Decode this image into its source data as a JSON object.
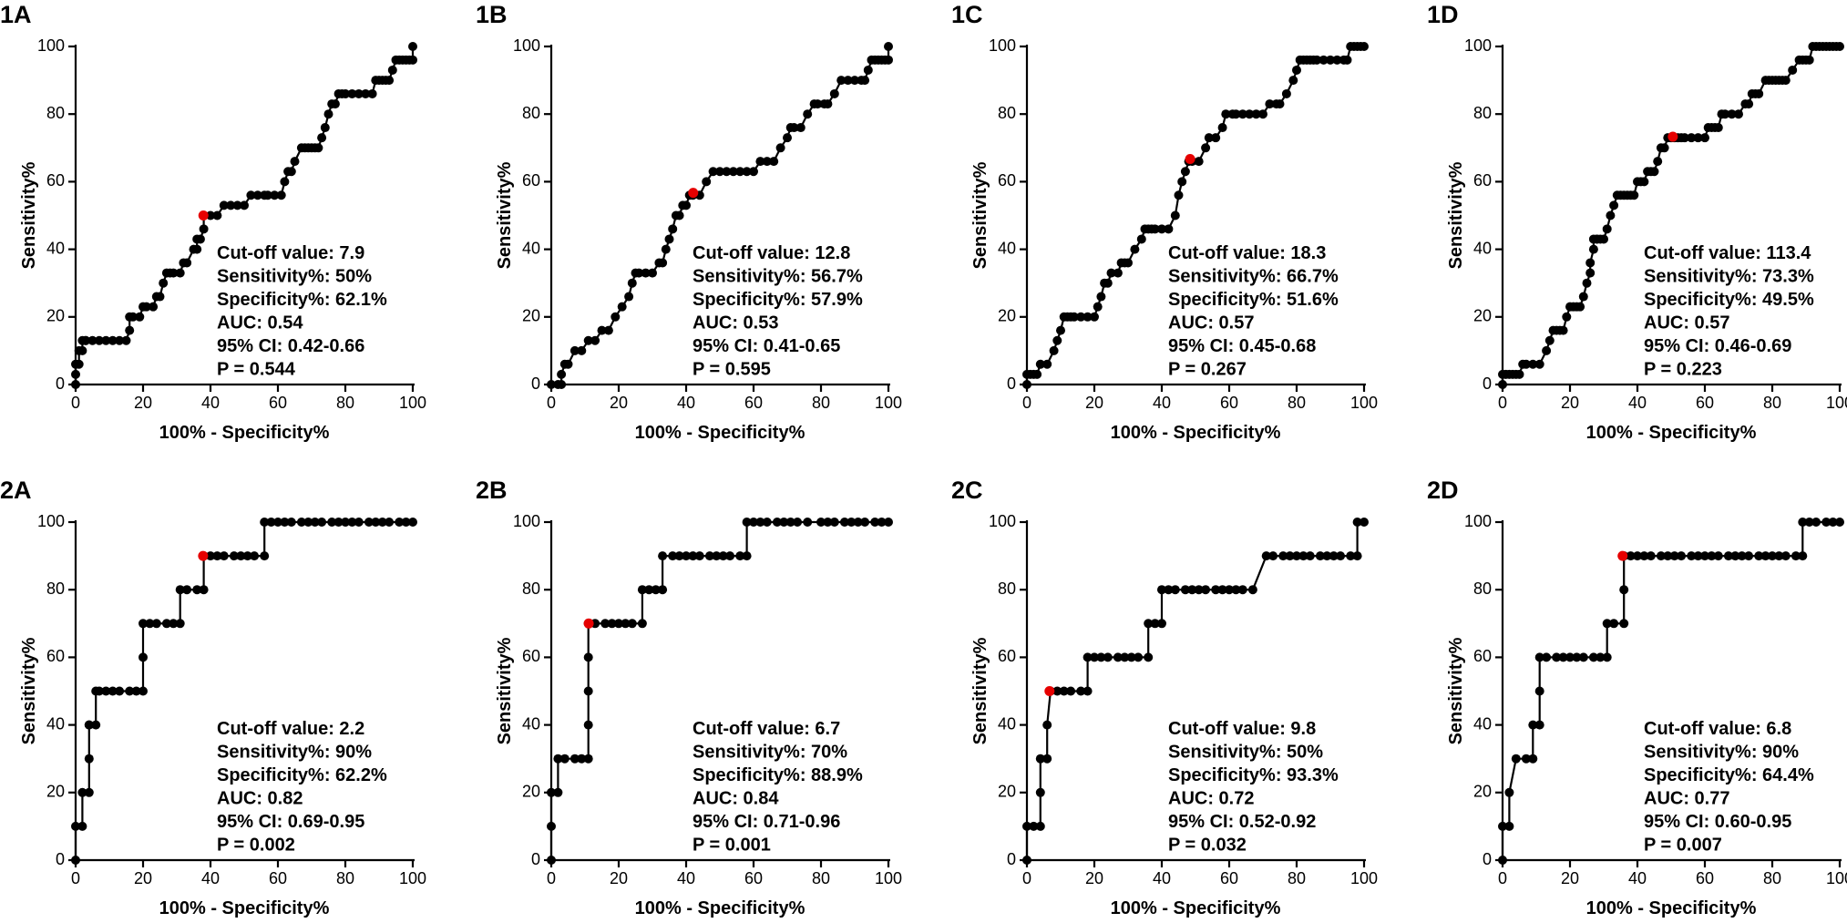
{
  "chart_data": [
    {
      "panel": "1A",
      "type": "line",
      "xlabel": "100% - Specificity%",
      "ylabel": "Sensitivity%",
      "xlim": [
        0,
        100
      ],
      "ylim": [
        0,
        100
      ],
      "xticks": [
        "0",
        "20",
        "40",
        "60",
        "80",
        "100"
      ],
      "yticks": [
        "0",
        "20",
        "40",
        "60",
        "80",
        "100"
      ],
      "cutoff_point": [
        37.9,
        50
      ],
      "stats": [
        "Cut-off value: 7.9",
        "Sensitivity%: 50%",
        "Specificity%: 62.1%",
        "AUC: 0.54",
        "95% CI: 0.42-0.66",
        "P = 0.544"
      ],
      "x": [
        0,
        0,
        0,
        1,
        1,
        2,
        2,
        3,
        3,
        5,
        7,
        9,
        11,
        13,
        15,
        16,
        16,
        17,
        19,
        20,
        21,
        23,
        24,
        25,
        26,
        27,
        28,
        29,
        31,
        32,
        33,
        35,
        36,
        36,
        37,
        38,
        38,
        40,
        42,
        44,
        46,
        48,
        50,
        52,
        54,
        56,
        57,
        59,
        61,
        62,
        63,
        64,
        65,
        67,
        68,
        69,
        70,
        71,
        72,
        73,
        74,
        75,
        76,
        77,
        78,
        79,
        80,
        82,
        84,
        86,
        88,
        89,
        90,
        91,
        92,
        93,
        94,
        95,
        96,
        97,
        98,
        99,
        100,
        100
      ],
      "y": [
        0,
        3,
        6,
        6,
        10,
        10,
        13,
        13,
        13,
        13,
        13,
        13,
        13,
        13,
        13,
        16,
        20,
        20,
        20,
        23,
        23,
        23,
        26,
        26,
        30,
        33,
        33,
        33,
        33,
        36,
        36,
        40,
        40,
        43,
        43,
        46,
        50,
        50,
        50,
        53,
        53,
        53,
        53,
        56,
        56,
        56,
        56,
        56,
        56,
        60,
        63,
        63,
        66,
        70,
        70,
        70,
        70,
        70,
        70,
        73,
        76,
        80,
        83,
        83,
        86,
        86,
        86,
        86,
        86,
        86,
        86,
        90,
        90,
        90,
        90,
        90,
        93,
        96,
        96,
        96,
        96,
        96,
        96,
        100
      ]
    },
    {
      "panel": "1B",
      "type": "line",
      "xlabel": "100% - Specificity%",
      "ylabel": "Sensitivity%",
      "xlim": [
        0,
        100
      ],
      "ylim": [
        0,
        100
      ],
      "xticks": [
        "0",
        "20",
        "40",
        "60",
        "80",
        "100"
      ],
      "yticks": [
        "0",
        "20",
        "40",
        "60",
        "80",
        "100"
      ],
      "cutoff_point": [
        42.1,
        56.7
      ],
      "stats": [
        "Cut-off value: 12.8",
        "Sensitivity%: 56.7%",
        "Specificity%: 57.9%",
        "AUC: 0.53",
        "95% CI: 0.41-0.65",
        "P = 0.595"
      ],
      "x": [
        0,
        2,
        3,
        3,
        4,
        5,
        7,
        9,
        11,
        13,
        15,
        17,
        19,
        21,
        23,
        24,
        25,
        26,
        28,
        30,
        32,
        33,
        34,
        35,
        36,
        37,
        38,
        39,
        40,
        41,
        42,
        44,
        46,
        48,
        50,
        52,
        54,
        56,
        58,
        60,
        62,
        64,
        66,
        68,
        70,
        71,
        72,
        74,
        76,
        78,
        79,
        81,
        82,
        84,
        86,
        88,
        90,
        92,
        93,
        94,
        95,
        96,
        97,
        98,
        99,
        100,
        100
      ],
      "y": [
        0,
        0,
        0,
        3,
        6,
        6,
        10,
        10,
        13,
        13,
        16,
        16,
        20,
        23,
        26,
        30,
        33,
        33,
        33,
        33,
        36,
        36,
        40,
        43,
        46,
        50,
        50,
        53,
        53,
        56,
        56,
        56,
        60,
        63,
        63,
        63,
        63,
        63,
        63,
        63,
        66,
        66,
        66,
        70,
        73,
        76,
        76,
        76,
        80,
        83,
        83,
        83,
        83,
        86,
        90,
        90,
        90,
        90,
        90,
        93,
        96,
        96,
        96,
        96,
        96,
        96,
        100
      ]
    },
    {
      "panel": "1C",
      "type": "line",
      "xlabel": "100% - Specificity%",
      "ylabel": "Sensitivity%",
      "xlim": [
        0,
        100
      ],
      "ylim": [
        0,
        100
      ],
      "xticks": [
        "0",
        "20",
        "40",
        "60",
        "80",
        "100"
      ],
      "yticks": [
        "0",
        "20",
        "40",
        "60",
        "80",
        "100"
      ],
      "cutoff_point": [
        48.4,
        66.7
      ],
      "stats": [
        "Cut-off value: 18.3",
        "Sensitivity%: 66.7%",
        "Specificity%: 51.6%",
        "AUC: 0.57",
        "95% CI: 0.45-0.68",
        "P = 0.267"
      ],
      "x": [
        0,
        0,
        1,
        2,
        3,
        4,
        6,
        8,
        9,
        10,
        11,
        12,
        13,
        14,
        16,
        18,
        20,
        21,
        22,
        23,
        24,
        25,
        27,
        28,
        29,
        30,
        32,
        34,
        35,
        36,
        37,
        38,
        40,
        42,
        44,
        45,
        46,
        47,
        48,
        49,
        51,
        53,
        54,
        56,
        58,
        59,
        61,
        62,
        64,
        66,
        68,
        70,
        72,
        74,
        75,
        77,
        79,
        80,
        81,
        82,
        83,
        84,
        85,
        86,
        88,
        90,
        92,
        94,
        95,
        96,
        97,
        98,
        99,
        100
      ],
      "y": [
        0,
        3,
        3,
        3,
        3,
        6,
        6,
        10,
        13,
        16,
        20,
        20,
        20,
        20,
        20,
        20,
        20,
        23,
        26,
        30,
        30,
        33,
        33,
        36,
        36,
        36,
        40,
        43,
        46,
        46,
        46,
        46,
        46,
        46,
        50,
        56,
        60,
        63,
        66,
        66,
        66,
        70,
        73,
        73,
        76,
        80,
        80,
        80,
        80,
        80,
        80,
        80,
        83,
        83,
        83,
        86,
        90,
        93,
        96,
        96,
        96,
        96,
        96,
        96,
        96,
        96,
        96,
        96,
        96,
        100,
        100,
        100,
        100,
        100
      ]
    },
    {
      "panel": "1D",
      "type": "line",
      "xlabel": "100% - Specificity%",
      "ylabel": "Sensitivity%",
      "xlim": [
        0,
        100
      ],
      "ylim": [
        0,
        100
      ],
      "xticks": [
        "0",
        "20",
        "40",
        "60",
        "80",
        "100"
      ],
      "yticks": [
        "0",
        "20",
        "40",
        "60",
        "80",
        "100"
      ],
      "cutoff_point": [
        50.5,
        73.3
      ],
      "stats": [
        "Cut-off value: 113.4",
        "Sensitivity%: 73.3%",
        "Specificity%: 49.5%",
        "AUC: 0.57",
        "95% CI: 0.46-0.69",
        "P = 0.223"
      ],
      "x": [
        0,
        0,
        1,
        2,
        3,
        4,
        5,
        6,
        7,
        9,
        11,
        13,
        14,
        15,
        16,
        17,
        18,
        19,
        20,
        21,
        22,
        23,
        24,
        25,
        26,
        26,
        27,
        27,
        28,
        28,
        29,
        30,
        31,
        32,
        33,
        34,
        35,
        36,
        37,
        38,
        39,
        40,
        41,
        42,
        43,
        44,
        45,
        46,
        47,
        48,
        49,
        50,
        51,
        52,
        53,
        54,
        56,
        58,
        60,
        61,
        62,
        63,
        64,
        65,
        66,
        68,
        70,
        72,
        73,
        74,
        75,
        76,
        78,
        79,
        80,
        81,
        82,
        83,
        84,
        86,
        88,
        89,
        90,
        91,
        92,
        93,
        94,
        95,
        96,
        97,
        98,
        99,
        100
      ],
      "y": [
        0,
        3,
        3,
        3,
        3,
        3,
        3,
        6,
        6,
        6,
        6,
        10,
        13,
        16,
        16,
        16,
        16,
        20,
        23,
        23,
        23,
        23,
        26,
        30,
        33,
        36,
        40,
        43,
        43,
        43,
        43,
        43,
        46,
        50,
        53,
        56,
        56,
        56,
        56,
        56,
        56,
        60,
        60,
        60,
        63,
        63,
        63,
        66,
        70,
        70,
        73,
        73,
        73,
        73,
        73,
        73,
        73,
        73,
        73,
        76,
        76,
        76,
        76,
        80,
        80,
        80,
        80,
        83,
        83,
        86,
        86,
        86,
        90,
        90,
        90,
        90,
        90,
        90,
        90,
        93,
        96,
        96,
        96,
        96,
        100,
        100,
        100,
        100,
        100,
        100,
        100,
        100,
        100
      ]
    },
    {
      "panel": "2A",
      "type": "line",
      "xlabel": "100% - Specificity%",
      "ylabel": "Sensitivity%",
      "xlim": [
        0,
        100
      ],
      "ylim": [
        0,
        100
      ],
      "xticks": [
        "0",
        "20",
        "40",
        "60",
        "80",
        "100"
      ],
      "yticks": [
        "0",
        "20",
        "40",
        "60",
        "80",
        "100"
      ],
      "cutoff_point": [
        37.8,
        90
      ],
      "stats": [
        "Cut-off value: 2.2",
        "Sensitivity%: 90%",
        "Specificity%: 62.2%",
        "AUC: 0.82",
        "95% CI: 0.69-0.95",
        "P = 0.002"
      ],
      "x": [
        0,
        0,
        2,
        2,
        4,
        4,
        4,
        4,
        6,
        6,
        7,
        9,
        11,
        13,
        16,
        18,
        20,
        20,
        20,
        22,
        24,
        27,
        29,
        31,
        31,
        33,
        36,
        38,
        38,
        40,
        42,
        44,
        47,
        49,
        51,
        53,
        56,
        56,
        58,
        60,
        62,
        64,
        67,
        69,
        71,
        73,
        76,
        78,
        80,
        82,
        84,
        87,
        89,
        91,
        93,
        96,
        98,
        100
      ],
      "y": [
        0,
        10,
        10,
        20,
        20,
        30,
        40,
        40,
        40,
        50,
        50,
        50,
        50,
        50,
        50,
        50,
        50,
        60,
        70,
        70,
        70,
        70,
        70,
        70,
        80,
        80,
        80,
        80,
        90,
        90,
        90,
        90,
        90,
        90,
        90,
        90,
        90,
        100,
        100,
        100,
        100,
        100,
        100,
        100,
        100,
        100,
        100,
        100,
        100,
        100,
        100,
        100,
        100,
        100,
        100,
        100,
        100,
        100
      ]
    },
    {
      "panel": "2B",
      "type": "line",
      "xlabel": "100% - Specificity%",
      "ylabel": "Sensitivity%",
      "xlim": [
        0,
        100
      ],
      "ylim": [
        0,
        100
      ],
      "xticks": [
        "0",
        "20",
        "40",
        "60",
        "80",
        "100"
      ],
      "yticks": [
        "0",
        "20",
        "40",
        "60",
        "80",
        "100"
      ],
      "cutoff_point": [
        11.1,
        70
      ],
      "stats": [
        "Cut-off value: 6.7",
        "Sensitivity%: 70%",
        "Specificity%: 88.9%",
        "AUC: 0.84",
        "95% CI: 0.71-0.96",
        "P = 0.001"
      ],
      "x": [
        0,
        0,
        0,
        2,
        2,
        4,
        7,
        9,
        11,
        11,
        11,
        11,
        11,
        11,
        13,
        16,
        18,
        20,
        22,
        24,
        27,
        27,
        29,
        31,
        33,
        33,
        36,
        38,
        40,
        42,
        44,
        47,
        49,
        51,
        53,
        56,
        58,
        58,
        60,
        62,
        64,
        67,
        69,
        71,
        73,
        76,
        80,
        82,
        84,
        87,
        89,
        91,
        93,
        96,
        98,
        100
      ],
      "y": [
        0,
        10,
        20,
        20,
        30,
        30,
        30,
        30,
        30,
        40,
        50,
        60,
        70,
        70,
        70,
        70,
        70,
        70,
        70,
        70,
        70,
        80,
        80,
        80,
        80,
        90,
        90,
        90,
        90,
        90,
        90,
        90,
        90,
        90,
        90,
        90,
        90,
        100,
        100,
        100,
        100,
        100,
        100,
        100,
        100,
        100,
        100,
        100,
        100,
        100,
        100,
        100,
        100,
        100,
        100,
        100
      ]
    },
    {
      "panel": "2C",
      "type": "line",
      "xlabel": "100% - Specificity%",
      "ylabel": "Sensitivity%",
      "xlim": [
        0,
        100
      ],
      "ylim": [
        0,
        100
      ],
      "xticks": [
        "0",
        "20",
        "40",
        "60",
        "80",
        "100"
      ],
      "yticks": [
        "0",
        "20",
        "40",
        "60",
        "80",
        "100"
      ],
      "cutoff_point": [
        6.7,
        50
      ],
      "stats": [
        "Cut-off value: 9.8",
        "Sensitivity%: 50%",
        "Specificity%: 93.3%",
        "AUC: 0.72",
        "95% CI: 0.52-0.92",
        "P = 0.032"
      ],
      "x": [
        0,
        0,
        2,
        4,
        4,
        4,
        6,
        6,
        7,
        9,
        11,
        13,
        16,
        18,
        18,
        20,
        22,
        24,
        27,
        29,
        31,
        33,
        36,
        36,
        38,
        40,
        40,
        42,
        44,
        47,
        49,
        51,
        53,
        56,
        58,
        60,
        62,
        64,
        67,
        71,
        73,
        76,
        78,
        80,
        82,
        84,
        87,
        89,
        91,
        93,
        96,
        98,
        98,
        100
      ],
      "y": [
        0,
        10,
        10,
        10,
        20,
        30,
        30,
        40,
        50,
        50,
        50,
        50,
        50,
        50,
        60,
        60,
        60,
        60,
        60,
        60,
        60,
        60,
        60,
        70,
        70,
        70,
        80,
        80,
        80,
        80,
        80,
        80,
        80,
        80,
        80,
        80,
        80,
        80,
        80,
        90,
        90,
        90,
        90,
        90,
        90,
        90,
        90,
        90,
        90,
        90,
        90,
        90,
        100,
        100
      ]
    },
    {
      "panel": "2D",
      "type": "line",
      "xlabel": "100% - Specificity%",
      "ylabel": "Sensitivity%",
      "xlim": [
        0,
        100
      ],
      "ylim": [
        0,
        100
      ],
      "xticks": [
        "0",
        "20",
        "40",
        "60",
        "80",
        "100"
      ],
      "yticks": [
        "0",
        "20",
        "40",
        "60",
        "80",
        "100"
      ],
      "cutoff_point": [
        35.6,
        90
      ],
      "stats": [
        "Cut-off value: 6.8",
        "Sensitivity%: 90%",
        "Specificity%: 64.4%",
        "AUC: 0.77",
        "95% CI: 0.60-0.95",
        "P = 0.007"
      ],
      "x": [
        0,
        0,
        2,
        2,
        4,
        7,
        9,
        9,
        11,
        11,
        11,
        13,
        16,
        18,
        20,
        22,
        24,
        27,
        29,
        31,
        31,
        33,
        36,
        36,
        36,
        36,
        38,
        40,
        42,
        44,
        47,
        49,
        51,
        53,
        56,
        58,
        60,
        62,
        64,
        67,
        69,
        71,
        73,
        76,
        78,
        80,
        82,
        84,
        87,
        89,
        89,
        91,
        93,
        96,
        98,
        100
      ],
      "y": [
        0,
        10,
        10,
        20,
        30,
        30,
        30,
        40,
        40,
        50,
        60,
        60,
        60,
        60,
        60,
        60,
        60,
        60,
        60,
        60,
        70,
        70,
        70,
        80,
        90,
        90,
        90,
        90,
        90,
        90,
        90,
        90,
        90,
        90,
        90,
        90,
        90,
        90,
        90,
        90,
        90,
        90,
        90,
        90,
        90,
        90,
        90,
        90,
        90,
        90,
        100,
        100,
        100,
        100,
        100,
        100
      ]
    }
  ],
  "colors": {
    "curve": "#000000",
    "cutoff_point": "#e60000",
    "axis": "#000000"
  }
}
